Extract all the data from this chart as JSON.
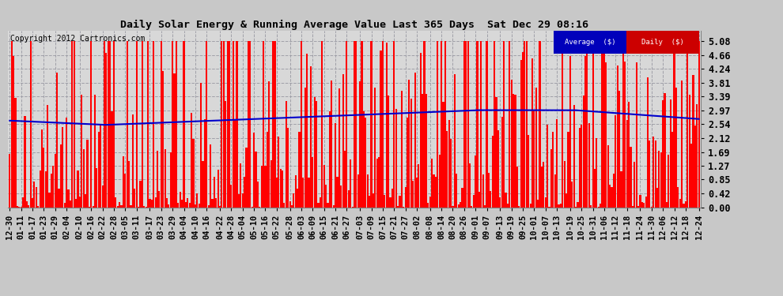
{
  "title": "Daily Solar Energy & Running Average Value Last 365 Days  Sat Dec 29 08:16",
  "copyright": "Copyright 2012 Cartronics.com",
  "bg_color": "#c8c8c8",
  "plot_bg_color": "#d8d8d8",
  "bar_color": "#ff0000",
  "avg_color": "#0000cc",
  "ylim": [
    0.0,
    5.39
  ],
  "yticks": [
    0.0,
    0.42,
    0.85,
    1.27,
    1.69,
    2.12,
    2.54,
    2.97,
    3.39,
    3.81,
    4.24,
    4.66,
    5.08
  ],
  "x_labels": [
    "12-30",
    "01-11",
    "01-17",
    "01-23",
    "01-29",
    "02-04",
    "02-10",
    "02-16",
    "02-22",
    "02-28",
    "03-05",
    "03-11",
    "03-17",
    "03-23",
    "03-29",
    "04-04",
    "04-10",
    "04-16",
    "04-22",
    "04-28",
    "05-04",
    "05-10",
    "05-16",
    "05-22",
    "05-28",
    "06-03",
    "06-09",
    "06-15",
    "06-21",
    "06-27",
    "07-03",
    "07-09",
    "07-15",
    "07-21",
    "07-27",
    "08-02",
    "08-08",
    "08-14",
    "08-20",
    "08-26",
    "09-01",
    "09-07",
    "09-13",
    "09-19",
    "09-25",
    "10-01",
    "10-07",
    "10-13",
    "10-19",
    "10-25",
    "10-31",
    "11-06",
    "11-12",
    "11-18",
    "11-24",
    "11-30",
    "12-06",
    "12-12",
    "12-18",
    "12-24"
  ],
  "legend_avg_label": "Average  ($)",
  "legend_daily_label": "Daily  ($)"
}
